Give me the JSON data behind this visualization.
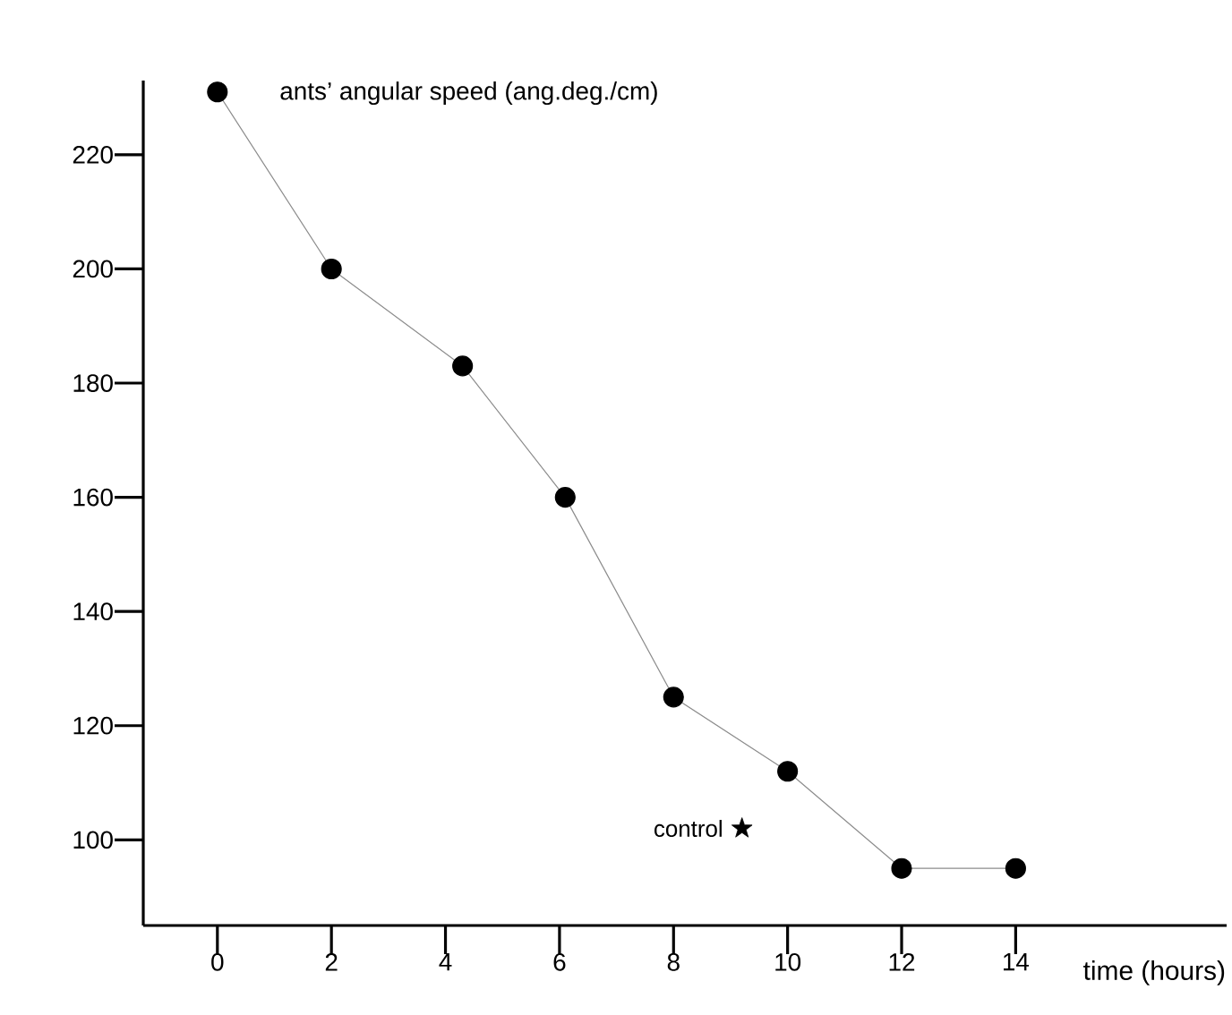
{
  "chart_data": {
    "type": "line",
    "xlabel": "time (hours)",
    "ylabel": "ants’ angular speed (ang.deg./cm)",
    "xlim": [
      -1.3,
      17.7
    ],
    "ylim": [
      85,
      233
    ],
    "xticks": [
      0,
      2,
      4,
      6,
      8,
      10,
      12,
      14
    ],
    "yticks": [
      100,
      120,
      140,
      160,
      180,
      200,
      220
    ],
    "grid": false,
    "legend": false,
    "series": [
      {
        "marker": "circle",
        "color": "#000000",
        "x": [
          0,
          2,
          4.3,
          6.1,
          8,
          10,
          12,
          14
        ],
        "values": [
          231,
          200,
          183,
          160,
          125,
          112,
          95,
          95
        ]
      },
      {
        "type": "scatter",
        "marker": "star",
        "name": "control",
        "color": "#000000",
        "x": [
          9.2
        ],
        "values": [
          102
        ]
      }
    ]
  }
}
